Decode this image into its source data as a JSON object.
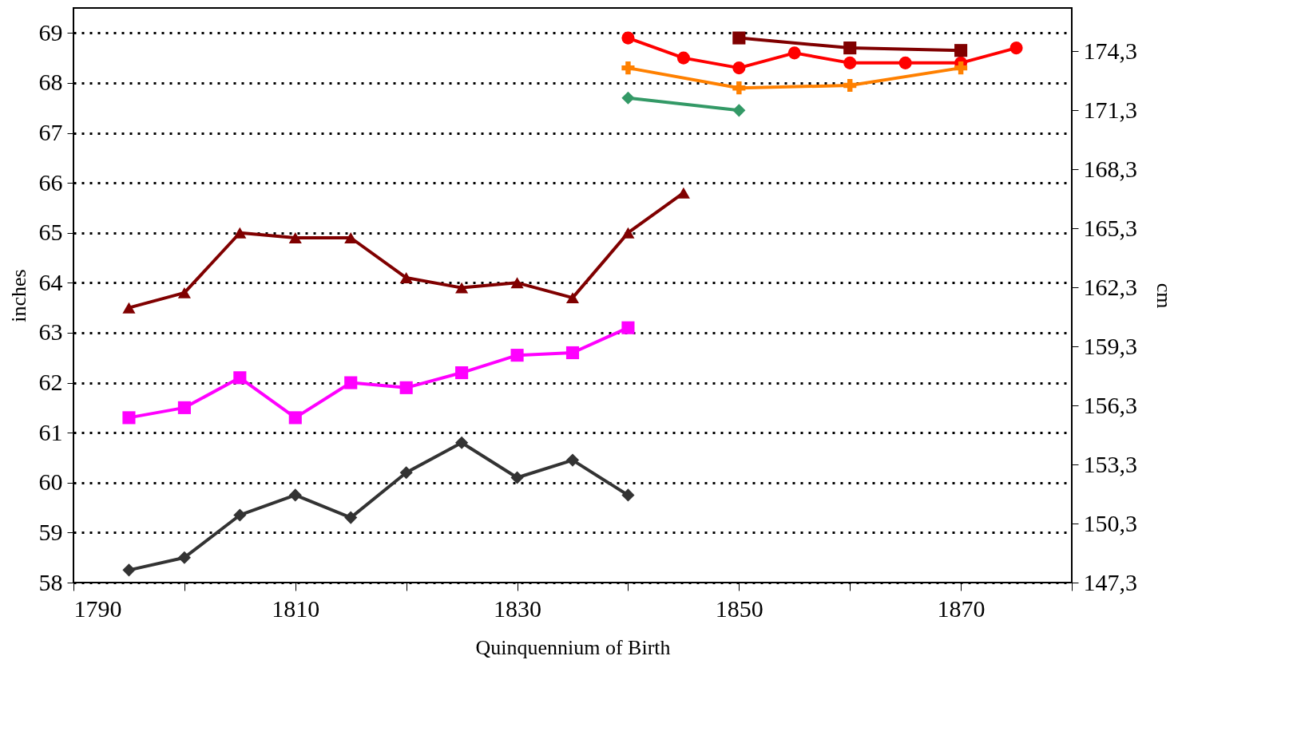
{
  "chart_data": {
    "type": "line",
    "xlabel": "Quinquennium of Birth",
    "ylabel": "inches",
    "y2label": "cm",
    "xlim": [
      1790,
      1880
    ],
    "xticks": [
      1790,
      {
        "value": 1800,
        "label": null
      },
      1810,
      {
        "value": 1820,
        "label": null
      },
      1830,
      {
        "value": 1840,
        "label": null
      },
      1850,
      {
        "value": 1860,
        "label": null
      },
      1870,
      {
        "value": 1880,
        "label": null
      }
    ],
    "ylim": [
      58,
      69.5
    ],
    "yticks": [
      58,
      59,
      60,
      61,
      62,
      63,
      64,
      65,
      66,
      67,
      68,
      69
    ],
    "y2lim": [
      147.3,
      176.5
    ],
    "y2ticks": [
      {
        "value": 147.3,
        "label": "147,3"
      },
      {
        "value": 150.3,
        "label": "150,3"
      },
      {
        "value": 153.3,
        "label": "153,3"
      },
      {
        "value": 156.3,
        "label": "156,3"
      },
      {
        "value": 159.3,
        "label": "159,3"
      },
      {
        "value": 162.3,
        "label": "162,3"
      },
      {
        "value": 165.3,
        "label": "165,3"
      },
      {
        "value": 168.3,
        "label": "168,3"
      },
      {
        "value": 171.3,
        "label": "171,3"
      },
      {
        "value": 174.3,
        "label": "174,3"
      }
    ],
    "grid": "y",
    "legend": false,
    "series": [
      {
        "color": "#800000",
        "marker": "triangle",
        "x": [
          1795,
          1800,
          1805,
          1810,
          1815,
          1820,
          1825,
          1830,
          1835,
          1840,
          1845
        ],
        "values": [
          63.5,
          63.8,
          65.0,
          64.9,
          64.9,
          64.1,
          63.9,
          64.0,
          63.7,
          65.0,
          65.8
        ]
      },
      {
        "color": "#ff00ff",
        "marker": "square",
        "x": [
          1795,
          1800,
          1805,
          1810,
          1815,
          1820,
          1825,
          1830,
          1835,
          1840
        ],
        "values": [
          61.3,
          61.5,
          62.1,
          61.3,
          62.0,
          61.9,
          62.2,
          62.55,
          62.6,
          63.1
        ]
      },
      {
        "color": "#333333",
        "marker": "diamond",
        "x": [
          1795,
          1800,
          1805,
          1810,
          1815,
          1820,
          1825,
          1830,
          1835,
          1840
        ],
        "values": [
          58.25,
          58.5,
          59.35,
          59.75,
          59.3,
          60.2,
          60.8,
          60.1,
          60.45,
          59.75
        ]
      },
      {
        "color": "#ff0000",
        "marker": "circle",
        "x": [
          1840,
          1845,
          1850,
          1855,
          1860,
          1865,
          1870,
          1875
        ],
        "values": [
          68.9,
          68.5,
          68.3,
          68.6,
          68.4,
          68.4,
          68.4,
          68.7
        ]
      },
      {
        "color": "#800000",
        "marker": "square",
        "x": [
          1850,
          1860,
          1870
        ],
        "values": [
          68.9,
          68.7,
          68.65
        ]
      },
      {
        "color": "#ff8000",
        "marker": "cross",
        "x": [
          1840,
          1850,
          1860,
          1870
        ],
        "values": [
          68.3,
          67.9,
          67.95,
          68.3
        ]
      },
      {
        "color": "#339966",
        "marker": "diamond",
        "x": [
          1840,
          1850
        ],
        "values": [
          67.7,
          67.45
        ]
      }
    ]
  }
}
